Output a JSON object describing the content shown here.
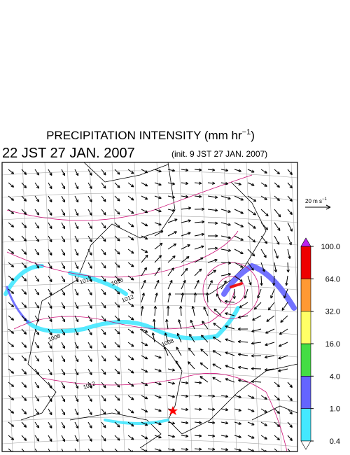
{
  "header": {
    "title": "PRECIPITATION INTENSITY (mm hr",
    "title_sup": "−1",
    "title_close": ")",
    "valid_time": "22 JST 27 JAN. 2007",
    "init_time": "(init. 9 JST 27 JAN. 2007)"
  },
  "wind_scale": {
    "label": "20 m s",
    "sup": "−1"
  },
  "colorbar": {
    "ticks": [
      {
        "value": 0.4,
        "label": "0.4"
      },
      {
        "value": 1,
        "label": "1.0"
      },
      {
        "value": 4,
        "label": "4.0"
      },
      {
        "value": 16,
        "label": "16.0"
      },
      {
        "value": 32,
        "label": "32.0"
      },
      {
        "value": 64,
        "label": "64.0"
      },
      {
        "value": 100,
        "label": "100.0"
      }
    ],
    "colors": [
      "#44e8ff",
      "#6464ff",
      "#44dd44",
      "#ffff66",
      "#ff9933",
      "#ee0000"
    ],
    "over_color": "#bb22ee",
    "under_color": "#ffffff"
  },
  "isobar_labels": [
    "1012",
    "1016",
    "1008",
    "1012",
    "1008",
    "1012"
  ]
}
